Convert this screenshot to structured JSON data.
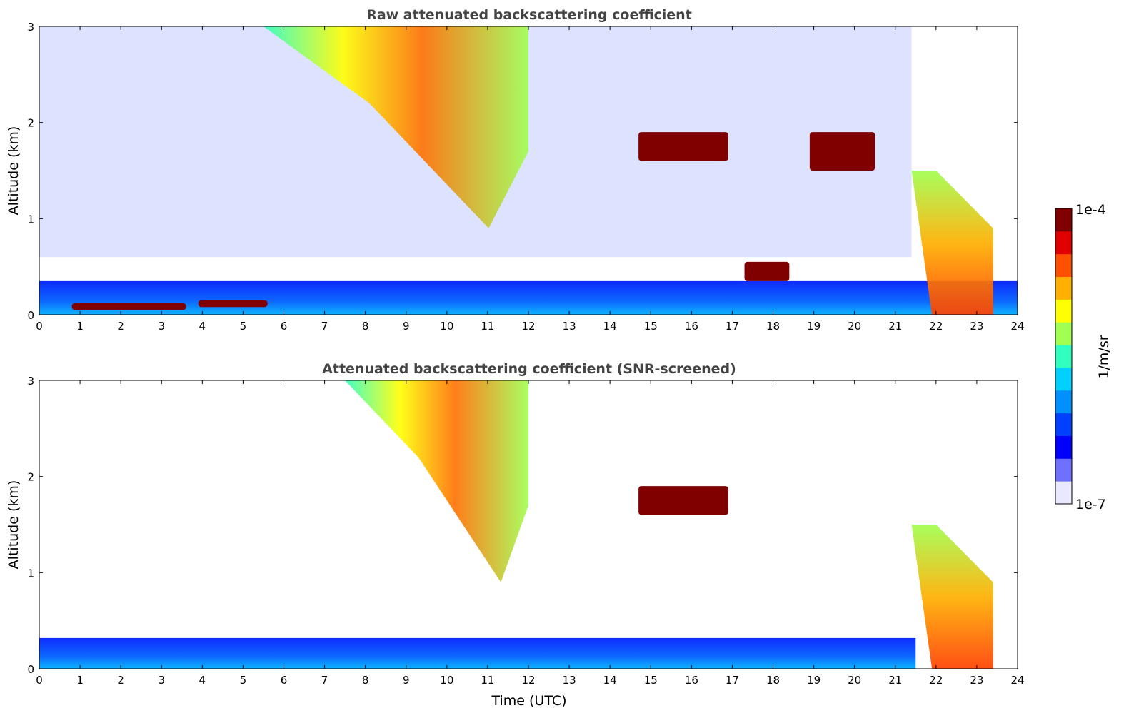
{
  "chart_data": [
    {
      "type": "heatmap",
      "title": "Raw attenuated backscattering coefficient",
      "xlabel": "",
      "ylabel": "Altitude (km)",
      "xlim": [
        0,
        24
      ],
      "ylim": [
        0,
        3
      ],
      "xticks": [
        "0",
        "1",
        "2",
        "3",
        "4",
        "5",
        "6",
        "7",
        "8",
        "9",
        "10",
        "11",
        "12",
        "13",
        "14",
        "15",
        "16",
        "17",
        "18",
        "19",
        "20",
        "21",
        "22",
        "23",
        "24"
      ],
      "yticks": [
        "0",
        "1",
        "2",
        "3"
      ],
      "features": [
        {
          "name": "boundary layer aerosol",
          "t": [
            0,
            24
          ],
          "alt": [
            0,
            0.35
          ],
          "level": 0.3
        },
        {
          "name": "low cloud",
          "t": [
            0.8,
            3.6
          ],
          "alt": [
            0.05,
            0.12
          ],
          "level": 1.0
        },
        {
          "name": "low cloud",
          "t": [
            3.9,
            5.6
          ],
          "alt": [
            0.08,
            0.15
          ],
          "level": 1.0
        },
        {
          "name": "descending cirrus",
          "t": [
            5.5,
            12.0
          ],
          "alt": [
            0.9,
            3.0
          ],
          "level": 0.75
        },
        {
          "name": "cloud layer",
          "t": [
            14.7,
            16.9
          ],
          "alt": [
            1.6,
            1.9
          ],
          "level": 1.0
        },
        {
          "name": "cloud layer",
          "t": [
            18.9,
            20.5
          ],
          "alt": [
            1.5,
            1.9
          ],
          "level": 1.0
        },
        {
          "name": "low cloud",
          "t": [
            17.3,
            18.4
          ],
          "alt": [
            0.35,
            0.55
          ],
          "level": 1.0
        },
        {
          "name": "precipitating cloud",
          "t": [
            21.4,
            23.4
          ],
          "alt": [
            0,
            1.5
          ],
          "level": 0.85
        }
      ]
    },
    {
      "type": "heatmap",
      "title": "Attenuated backscattering coefficient (SNR-screened)",
      "xlabel": "Time (UTC)",
      "ylabel": "Altitude (km)",
      "xlim": [
        0,
        24
      ],
      "ylim": [
        0,
        3
      ],
      "xticks": [
        "0",
        "1",
        "2",
        "3",
        "4",
        "5",
        "6",
        "7",
        "8",
        "9",
        "10",
        "11",
        "12",
        "13",
        "14",
        "15",
        "16",
        "17",
        "18",
        "19",
        "20",
        "21",
        "22",
        "23",
        "24"
      ],
      "yticks": [
        "0",
        "1",
        "2",
        "3"
      ],
      "features": [
        {
          "name": "boundary layer aerosol",
          "t": [
            0,
            21.5
          ],
          "alt": [
            0,
            0.32
          ],
          "level": 0.3
        },
        {
          "name": "descending cirrus",
          "t": [
            7.5,
            12.0
          ],
          "alt": [
            0.9,
            3.0
          ],
          "level": 0.75
        },
        {
          "name": "cloud layer",
          "t": [
            14.7,
            16.9
          ],
          "alt": [
            1.6,
            1.9
          ],
          "level": 1.0
        },
        {
          "name": "precipitating cloud",
          "t": [
            21.4,
            23.4
          ],
          "alt": [
            0,
            1.5
          ],
          "level": 0.85
        }
      ]
    }
  ],
  "colorbar": {
    "label": "1/m/sr",
    "max_label": "1e-4",
    "min_label": "1e-7",
    "colors": [
      "#e8e8ff",
      "#7070ff",
      "#0000ff",
      "#0040ff",
      "#0090ff",
      "#00d0ff",
      "#30ffc0",
      "#a0ff50",
      "#ffff00",
      "#ffb000",
      "#ff5000",
      "#e00000",
      "#800000"
    ]
  }
}
